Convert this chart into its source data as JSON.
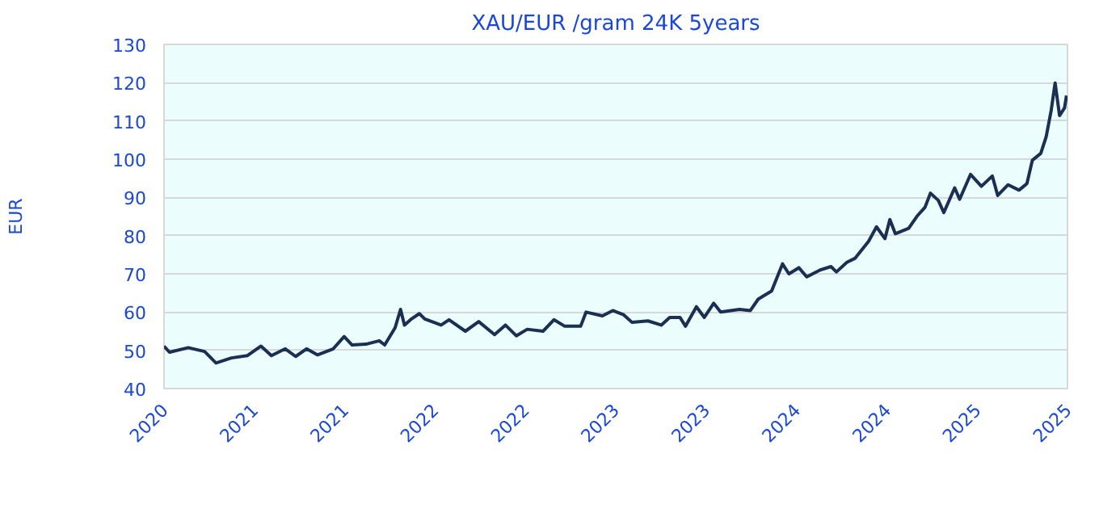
{
  "chart_data": {
    "type": "line",
    "title": "XAU/EUR /gram 24K 5years",
    "ylabel": "EUR",
    "x": [
      "2020-10-01",
      "2020-10-12",
      "2020-11-19",
      "2020-12-22",
      "2021-01-14",
      "2021-02-14",
      "2021-03-18",
      "2021-04-15",
      "2021-05-06",
      "2021-06-03",
      "2021-06-24",
      "2021-07-16",
      "2021-08-07",
      "2021-09-08",
      "2021-09-30",
      "2021-10-16",
      "2021-11-13",
      "2021-12-10",
      "2021-12-21",
      "2022-01-11",
      "2022-01-22",
      "2022-01-30",
      "2022-02-13",
      "2022-03-01",
      "2022-03-12",
      "2022-04-14",
      "2022-04-30",
      "2022-06-02",
      "2022-06-29",
      "2022-07-31",
      "2022-08-22",
      "2022-09-13",
      "2022-10-05",
      "2022-11-06",
      "2022-11-28",
      "2022-12-20",
      "2023-01-21",
      "2023-02-01",
      "2023-03-06",
      "2023-03-27",
      "2023-04-18",
      "2023-05-05",
      "2023-06-06",
      "2023-07-03",
      "2023-07-20",
      "2023-08-10",
      "2023-08-21",
      "2023-09-12",
      "2023-09-28",
      "2023-10-17",
      "2023-10-31",
      "2023-12-08",
      "2023-12-30",
      "2024-01-15",
      "2024-02-11",
      "2024-03-04",
      "2024-03-17",
      "2024-04-06",
      "2024-04-22",
      "2024-05-19",
      "2024-06-10",
      "2024-06-21",
      "2024-07-12",
      "2024-07-29",
      "2024-08-25",
      "2024-09-10",
      "2024-09-27",
      "2024-10-07",
      "2024-10-18",
      "2024-11-14",
      "2024-12-01",
      "2024-12-17",
      "2024-12-28",
      "2025-01-13",
      "2025-01-24",
      "2025-02-15",
      "2025-02-25",
      "2025-03-19",
      "2025-04-10",
      "2025-05-02",
      "2025-05-13",
      "2025-06-03",
      "2025-06-25",
      "2025-07-11",
      "2025-07-22",
      "2025-08-08",
      "2025-08-19",
      "2025-08-29",
      "2025-09-06",
      "2025-09-15",
      "2025-09-25",
      "2025-09-29"
    ],
    "series": [
      {
        "color": "#1a2f52",
        "values": [
          51.1,
          49.5,
          50.7,
          49.7,
          46.7,
          48,
          48.6,
          51.1,
          48.6,
          50.4,
          48.4,
          50.4,
          48.8,
          50.4,
          53.6,
          51.4,
          51.6,
          52.5,
          51.4,
          55.9,
          60.7,
          56.6,
          58.2,
          59.6,
          58.2,
          56.6,
          58,
          55,
          57.5,
          54.1,
          56.6,
          53.8,
          55.5,
          55,
          58,
          56.3,
          56.3,
          60,
          59,
          60.4,
          59.3,
          57.3,
          57.7,
          56.6,
          58.6,
          58.6,
          56.3,
          61.4,
          58.6,
          62.3,
          60,
          60.7,
          60.4,
          63.4,
          65.5,
          72.6,
          70,
          71.6,
          69.2,
          71,
          71.9,
          70.5,
          73,
          74.1,
          78.5,
          82.3,
          79.2,
          84.2,
          80.5,
          81.9,
          85.1,
          87.4,
          91.1,
          89.2,
          86,
          92.5,
          89.5,
          96,
          92.9,
          95.6,
          90.5,
          93.3,
          91.9,
          93.6,
          99.7,
          101.5,
          105.9,
          112.7,
          119.9,
          111.4,
          113.4,
          116.6
        ]
      }
    ],
    "xlim": [
      "2020-10-01",
      "2025-10-01"
    ],
    "xticks": [
      {
        "value": "2020-10-01",
        "label": "2020"
      },
      {
        "value": "2021-04-01",
        "label": "2021"
      },
      {
        "value": "2021-10-01",
        "label": "2021"
      },
      {
        "value": "2022-04-01",
        "label": "2022"
      },
      {
        "value": "2022-10-01",
        "label": "2022"
      },
      {
        "value": "2023-04-01",
        "label": "2023"
      },
      {
        "value": "2023-10-01",
        "label": "2023"
      },
      {
        "value": "2024-04-01",
        "label": "2024"
      },
      {
        "value": "2024-10-01",
        "label": "2024"
      },
      {
        "value": "2025-04-01",
        "label": "2025"
      },
      {
        "value": "2025-10-01",
        "label": "2025"
      }
    ],
    "ylim": [
      40,
      130
    ],
    "yticks": [
      40,
      50,
      60,
      70,
      80,
      90,
      100,
      110,
      120,
      130
    ],
    "grid": "y",
    "marker": "none",
    "line_style": "solid"
  }
}
